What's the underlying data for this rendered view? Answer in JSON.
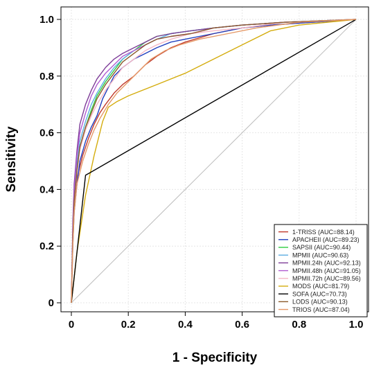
{
  "chart_data": {
    "type": "line",
    "title": "",
    "xlabel": "1 - Specificity",
    "ylabel": "Sensitivity",
    "xlim": [
      0,
      1
    ],
    "ylim": [
      0,
      1
    ],
    "x_ticks": [
      "0",
      "0.2",
      "0.4",
      "0.6",
      "0.8",
      "1.0"
    ],
    "y_ticks": [
      "0",
      "0.2",
      "0.4",
      "0.6",
      "0.8",
      "1.0"
    ],
    "grid": true,
    "diagonal_reference": true,
    "legend_position": "bottom-right",
    "series": [
      {
        "name": "1-TRISS (AUC=88.14)",
        "color": "#c0392b",
        "points": [
          [
            0,
            0
          ],
          [
            0.005,
            0.22
          ],
          [
            0.01,
            0.34
          ],
          [
            0.02,
            0.44
          ],
          [
            0.04,
            0.52
          ],
          [
            0.06,
            0.58
          ],
          [
            0.08,
            0.63
          ],
          [
            0.1,
            0.67
          ],
          [
            0.12,
            0.7
          ],
          [
            0.15,
            0.74
          ],
          [
            0.18,
            0.77
          ],
          [
            0.22,
            0.8
          ],
          [
            0.26,
            0.84
          ],
          [
            0.3,
            0.87
          ],
          [
            0.35,
            0.9
          ],
          [
            0.4,
            0.92
          ],
          [
            0.5,
            0.95
          ],
          [
            0.6,
            0.97
          ],
          [
            0.7,
            0.98
          ],
          [
            0.85,
            0.99
          ],
          [
            1,
            1
          ]
        ]
      },
      {
        "name": "APACHEII (AUC=89.23)",
        "color": "#1f3fbf",
        "points": [
          [
            0,
            0
          ],
          [
            0.005,
            0.2
          ],
          [
            0.01,
            0.32
          ],
          [
            0.02,
            0.42
          ],
          [
            0.03,
            0.5
          ],
          [
            0.05,
            0.57
          ],
          [
            0.07,
            0.62
          ],
          [
            0.09,
            0.66
          ],
          [
            0.11,
            0.72
          ],
          [
            0.13,
            0.76
          ],
          [
            0.15,
            0.8
          ],
          [
            0.18,
            0.83
          ],
          [
            0.22,
            0.86
          ],
          [
            0.26,
            0.88
          ],
          [
            0.3,
            0.9
          ],
          [
            0.35,
            0.92
          ],
          [
            0.4,
            0.93
          ],
          [
            0.5,
            0.95
          ],
          [
            0.6,
            0.97
          ],
          [
            0.7,
            0.98
          ],
          [
            0.85,
            0.99
          ],
          [
            1,
            1
          ]
        ]
      },
      {
        "name": "SAPSII (AUC=90.44)",
        "color": "#2ecc40",
        "points": [
          [
            0,
            0
          ],
          [
            0.005,
            0.24
          ],
          [
            0.01,
            0.36
          ],
          [
            0.02,
            0.47
          ],
          [
            0.03,
            0.55
          ],
          [
            0.05,
            0.62
          ],
          [
            0.07,
            0.68
          ],
          [
            0.09,
            0.73
          ],
          [
            0.12,
            0.78
          ],
          [
            0.15,
            0.82
          ],
          [
            0.18,
            0.86
          ],
          [
            0.22,
            0.89
          ],
          [
            0.26,
            0.92
          ],
          [
            0.3,
            0.94
          ],
          [
            0.35,
            0.95
          ],
          [
            0.42,
            0.96
          ],
          [
            0.5,
            0.97
          ],
          [
            0.6,
            0.98
          ],
          [
            0.75,
            0.99
          ],
          [
            1,
            1
          ]
        ]
      },
      {
        "name": "MPMII (AUC=90.63)",
        "color": "#5dade2",
        "points": [
          [
            0,
            0
          ],
          [
            0.005,
            0.25
          ],
          [
            0.01,
            0.38
          ],
          [
            0.02,
            0.49
          ],
          [
            0.03,
            0.57
          ],
          [
            0.05,
            0.64
          ],
          [
            0.07,
            0.7
          ],
          [
            0.09,
            0.74
          ],
          [
            0.12,
            0.79
          ],
          [
            0.15,
            0.83
          ],
          [
            0.18,
            0.86
          ],
          [
            0.22,
            0.89
          ],
          [
            0.26,
            0.91
          ],
          [
            0.3,
            0.93
          ],
          [
            0.35,
            0.95
          ],
          [
            0.42,
            0.96
          ],
          [
            0.5,
            0.97
          ],
          [
            0.6,
            0.98
          ],
          [
            0.75,
            0.99
          ],
          [
            1,
            1
          ]
        ]
      },
      {
        "name": "MPMII.24h (AUC=92.13)",
        "color": "#7d3c98",
        "points": [
          [
            0,
            0
          ],
          [
            0.005,
            0.28
          ],
          [
            0.01,
            0.42
          ],
          [
            0.02,
            0.54
          ],
          [
            0.03,
            0.63
          ],
          [
            0.05,
            0.7
          ],
          [
            0.07,
            0.75
          ],
          [
            0.09,
            0.79
          ],
          [
            0.12,
            0.83
          ],
          [
            0.15,
            0.86
          ],
          [
            0.18,
            0.88
          ],
          [
            0.22,
            0.9
          ],
          [
            0.26,
            0.92
          ],
          [
            0.3,
            0.94
          ],
          [
            0.35,
            0.95
          ],
          [
            0.42,
            0.96
          ],
          [
            0.5,
            0.97
          ],
          [
            0.6,
            0.98
          ],
          [
            0.75,
            0.99
          ],
          [
            1,
            1
          ]
        ]
      },
      {
        "name": "MPMII.48h (AUC=91.05)",
        "color": "#b15cd1",
        "points": [
          [
            0,
            0
          ],
          [
            0.005,
            0.26
          ],
          [
            0.01,
            0.4
          ],
          [
            0.02,
            0.52
          ],
          [
            0.03,
            0.6
          ],
          [
            0.05,
            0.67
          ],
          [
            0.07,
            0.73
          ],
          [
            0.09,
            0.77
          ],
          [
            0.12,
            0.81
          ],
          [
            0.15,
            0.84
          ],
          [
            0.18,
            0.87
          ],
          [
            0.22,
            0.89
          ],
          [
            0.26,
            0.91
          ],
          [
            0.3,
            0.93
          ],
          [
            0.35,
            0.94
          ],
          [
            0.42,
            0.95
          ],
          [
            0.5,
            0.97
          ],
          [
            0.6,
            0.98
          ],
          [
            0.75,
            0.99
          ],
          [
            1,
            1
          ]
        ]
      },
      {
        "name": "MPMII.72h (AUC=89.56)",
        "color": "#f5b7c5",
        "points": [
          [
            0,
            0
          ],
          [
            0.005,
            0.22
          ],
          [
            0.01,
            0.35
          ],
          [
            0.02,
            0.46
          ],
          [
            0.03,
            0.54
          ],
          [
            0.05,
            0.61
          ],
          [
            0.07,
            0.66
          ],
          [
            0.09,
            0.7
          ],
          [
            0.12,
            0.75
          ],
          [
            0.15,
            0.79
          ],
          [
            0.18,
            0.83
          ],
          [
            0.22,
            0.86
          ],
          [
            0.26,
            0.89
          ],
          [
            0.3,
            0.91
          ],
          [
            0.35,
            0.93
          ],
          [
            0.42,
            0.95
          ],
          [
            0.5,
            0.96
          ],
          [
            0.6,
            0.97
          ],
          [
            0.75,
            0.99
          ],
          [
            1,
            1
          ]
        ]
      },
      {
        "name": "MODS (AUC=81.79)",
        "color": "#d4ac0d",
        "points": [
          [
            0,
            0
          ],
          [
            0.02,
            0.18
          ],
          [
            0.05,
            0.38
          ],
          [
            0.08,
            0.52
          ],
          [
            0.11,
            0.64
          ],
          [
            0.13,
            0.69
          ],
          [
            0.16,
            0.71
          ],
          [
            0.2,
            0.73
          ],
          [
            0.3,
            0.77
          ],
          [
            0.4,
            0.81
          ],
          [
            0.5,
            0.86
          ],
          [
            0.6,
            0.91
          ],
          [
            0.7,
            0.96
          ],
          [
            0.8,
            0.98
          ],
          [
            1,
            1
          ]
        ]
      },
      {
        "name": "SOFA (AUC=70.73)",
        "color": "#000000",
        "points": [
          [
            0,
            0
          ],
          [
            0.05,
            0.45
          ],
          [
            1,
            1
          ]
        ]
      },
      {
        "name": "LODS (AUC=90.13)",
        "color": "#8b5a2b",
        "points": [
          [
            0,
            0
          ],
          [
            0.005,
            0.23
          ],
          [
            0.01,
            0.36
          ],
          [
            0.02,
            0.47
          ],
          [
            0.03,
            0.55
          ],
          [
            0.05,
            0.62
          ],
          [
            0.07,
            0.67
          ],
          [
            0.09,
            0.72
          ],
          [
            0.12,
            0.77
          ],
          [
            0.15,
            0.81
          ],
          [
            0.18,
            0.85
          ],
          [
            0.22,
            0.88
          ],
          [
            0.26,
            0.91
          ],
          [
            0.3,
            0.93
          ],
          [
            0.35,
            0.94
          ],
          [
            0.42,
            0.95
          ],
          [
            0.5,
            0.97
          ],
          [
            0.6,
            0.98
          ],
          [
            0.75,
            0.99
          ],
          [
            1,
            1
          ]
        ]
      },
      {
        "name": "TRIOS (AUC=87.04)",
        "color": "#e59866",
        "points": [
          [
            0,
            0
          ],
          [
            0.005,
            0.2
          ],
          [
            0.01,
            0.32
          ],
          [
            0.02,
            0.42
          ],
          [
            0.04,
            0.5
          ],
          [
            0.06,
            0.56
          ],
          [
            0.08,
            0.61
          ],
          [
            0.1,
            0.65
          ],
          [
            0.13,
            0.7
          ],
          [
            0.16,
            0.74
          ],
          [
            0.2,
            0.78
          ],
          [
            0.24,
            0.82
          ],
          [
            0.28,
            0.86
          ],
          [
            0.33,
            0.89
          ],
          [
            0.38,
            0.91
          ],
          [
            0.45,
            0.93
          ],
          [
            0.55,
            0.95
          ],
          [
            0.65,
            0.97
          ],
          [
            0.8,
            0.99
          ],
          [
            1,
            1
          ]
        ]
      }
    ]
  }
}
